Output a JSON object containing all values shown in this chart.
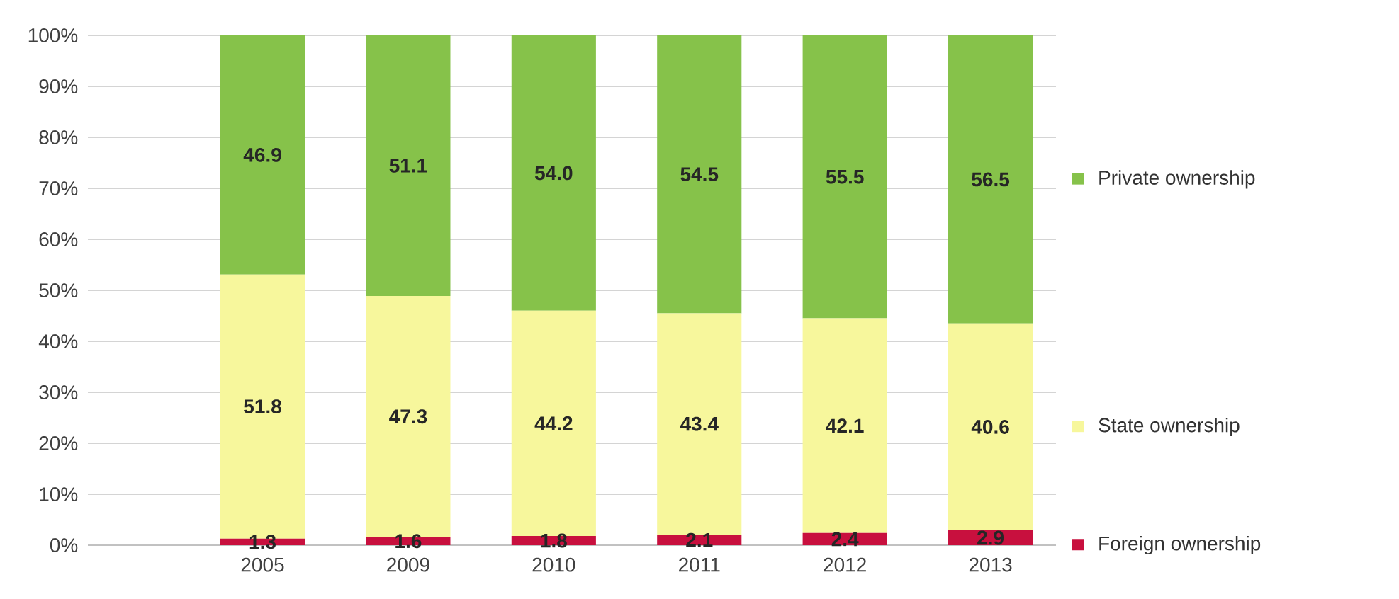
{
  "chart_data": {
    "type": "bar",
    "stacked": true,
    "categories": [
      "2005",
      "2009",
      "2010",
      "2011",
      "2012",
      "2013"
    ],
    "series": [
      {
        "name": "Foreign ownership",
        "color": "#c8103e",
        "values": [
          1.3,
          1.6,
          1.8,
          2.1,
          2.4,
          2.9
        ],
        "value_labels": [
          "1.3",
          "1.6",
          "1.8",
          "2.1",
          "2.4",
          "2.9"
        ]
      },
      {
        "name": "State ownership",
        "color": "#f7f79c",
        "values": [
          51.8,
          47.3,
          44.2,
          43.4,
          42.1,
          40.6
        ],
        "value_labels": [
          "51.8",
          "47.3",
          "44.2",
          "43.4",
          "42.1",
          "40.6"
        ]
      },
      {
        "name": "Private ownership",
        "color": "#86c24a",
        "values": [
          46.9,
          51.1,
          54.0,
          54.5,
          55.5,
          56.5
        ],
        "value_labels": [
          "46.9",
          "51.1",
          "54.0",
          "54.5",
          "55.5",
          "56.5"
        ]
      }
    ],
    "ylim": [
      0,
      100
    ],
    "yticks": [
      {
        "value": 0,
        "label": "0%"
      },
      {
        "value": 10,
        "label": "10%"
      },
      {
        "value": 20,
        "label": "20%"
      },
      {
        "value": 30,
        "label": "30%"
      },
      {
        "value": 40,
        "label": "40%"
      },
      {
        "value": 50,
        "label": "50%"
      },
      {
        "value": 60,
        "label": "60%"
      },
      {
        "value": 70,
        "label": "70%"
      },
      {
        "value": 80,
        "label": "80%"
      },
      {
        "value": 90,
        "label": "90%"
      },
      {
        "value": 100,
        "label": "100%"
      }
    ],
    "grid": "y",
    "legend": "right"
  }
}
